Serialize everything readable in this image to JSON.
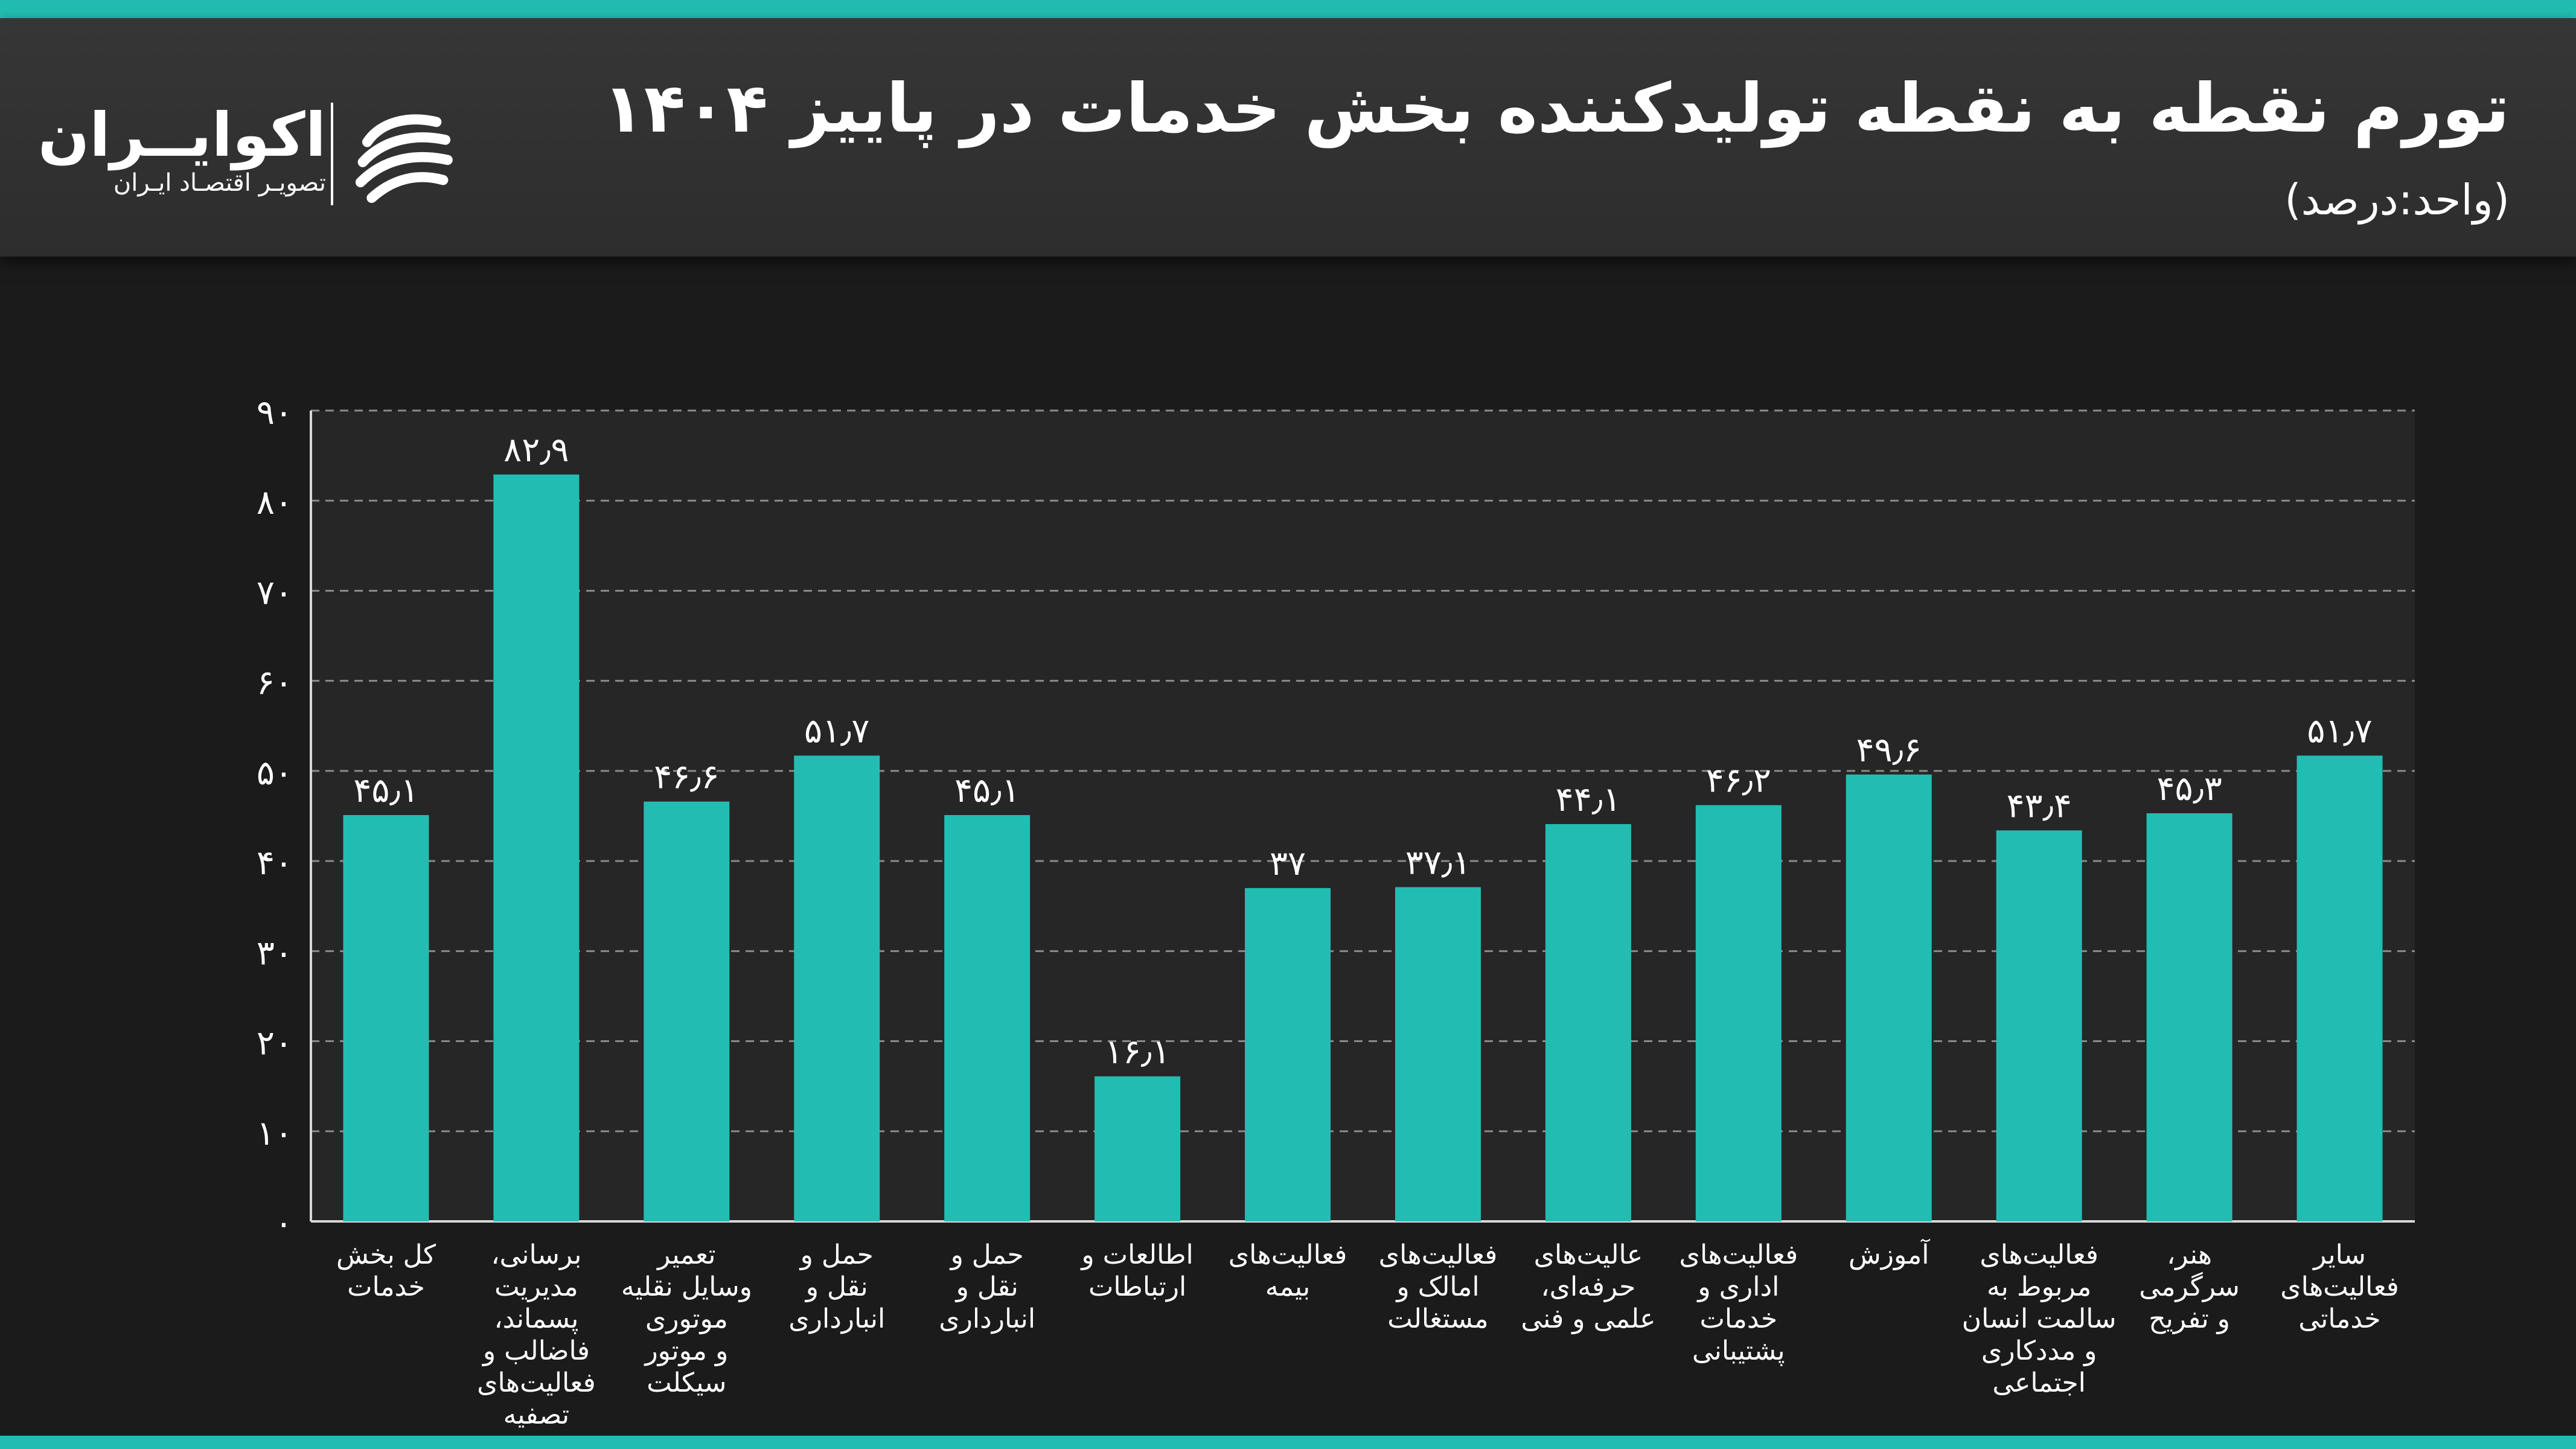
{
  "header": {
    "title": "تورم  نقطه به نقطه تولیدکننده بخش خدمات در پاییز ۱۴۰۴",
    "unit": "(واحد:درصد)"
  },
  "logo": {
    "name": "اکوایــران",
    "subtitle": "تصویـر اقتصـاد ایـران"
  },
  "colors": {
    "bar": "#22bdb2",
    "accent": "#22bdb2",
    "background": "#1b1b1b",
    "header": "#333333",
    "text": "#ffffff"
  },
  "chart_data": {
    "type": "bar",
    "title": "تورم  نقطه به نقطه تولیدکننده بخش خدمات در پاییز ۱۴۰۴",
    "ylabel": "",
    "xlabel": "",
    "ylim": [
      0,
      90
    ],
    "yticks": [
      0,
      10,
      20,
      30,
      40,
      50,
      60,
      70,
      80,
      90
    ],
    "ytick_labels": [
      "۰",
      "۱۰",
      "۲۰",
      "۳۰",
      "۴۰",
      "۵۰",
      "۶۰",
      "۷۰",
      "۸۰",
      "۹۰"
    ],
    "grid": true,
    "values": [
      45.1,
      82.9,
      46.6,
      51.7,
      45.1,
      16.1,
      37,
      37.1,
      44.1,
      46.2,
      49.6,
      43.4,
      45.3,
      51.7
    ],
    "value_labels": [
      "۴۵٫۱",
      "۸۲٫۹",
      "۴۶٫۶",
      "۵۱٫۷",
      "۴۵٫۱",
      "۱۶٫۱",
      "۳۷",
      "۳۷٫۱",
      "۴۴٫۱",
      "۴۶٫۲",
      "۴۹٫۶",
      "۴۳٫۴",
      "۴۵٫۳",
      "۵۱٫۷"
    ],
    "categories": [
      [
        "کل بخش",
        "خدمات"
      ],
      [
        "برسانی،",
        "مدیریت",
        "پسماند،",
        "فاضالب و",
        "فعالیت‌های",
        "تصفیه"
      ],
      [
        "تعمیر",
        "وسایل نقلیه",
        "موتوری",
        "و موتور",
        "سیکلت"
      ],
      [
        "حمل و",
        "نقل و",
        "انبارداری"
      ],
      [
        "حمل و",
        "نقل و",
        "انبارداری"
      ],
      [
        "اطالعات و",
        "ارتباطات"
      ],
      [
        "فعالیت‌های",
        "بیمه"
      ],
      [
        "فعالیت‌های",
        "امالک و",
        "مستغالت"
      ],
      [
        "عالیت‌های",
        "حرفه‌ای،",
        "علمی و فنی"
      ],
      [
        "فعالیت‌های",
        "اداری و",
        "خدمات",
        "پشتیبانی"
      ],
      [
        "آموزش"
      ],
      [
        "فعالیت‌های",
        "مربوط به",
        "سالمت انسان",
        "و مددکاری",
        "اجتماعی"
      ],
      [
        "هنر،",
        "سرگرمی",
        "و تفریح"
      ],
      [
        "سایر",
        "فعالیت‌های",
        "خدماتی"
      ]
    ]
  }
}
